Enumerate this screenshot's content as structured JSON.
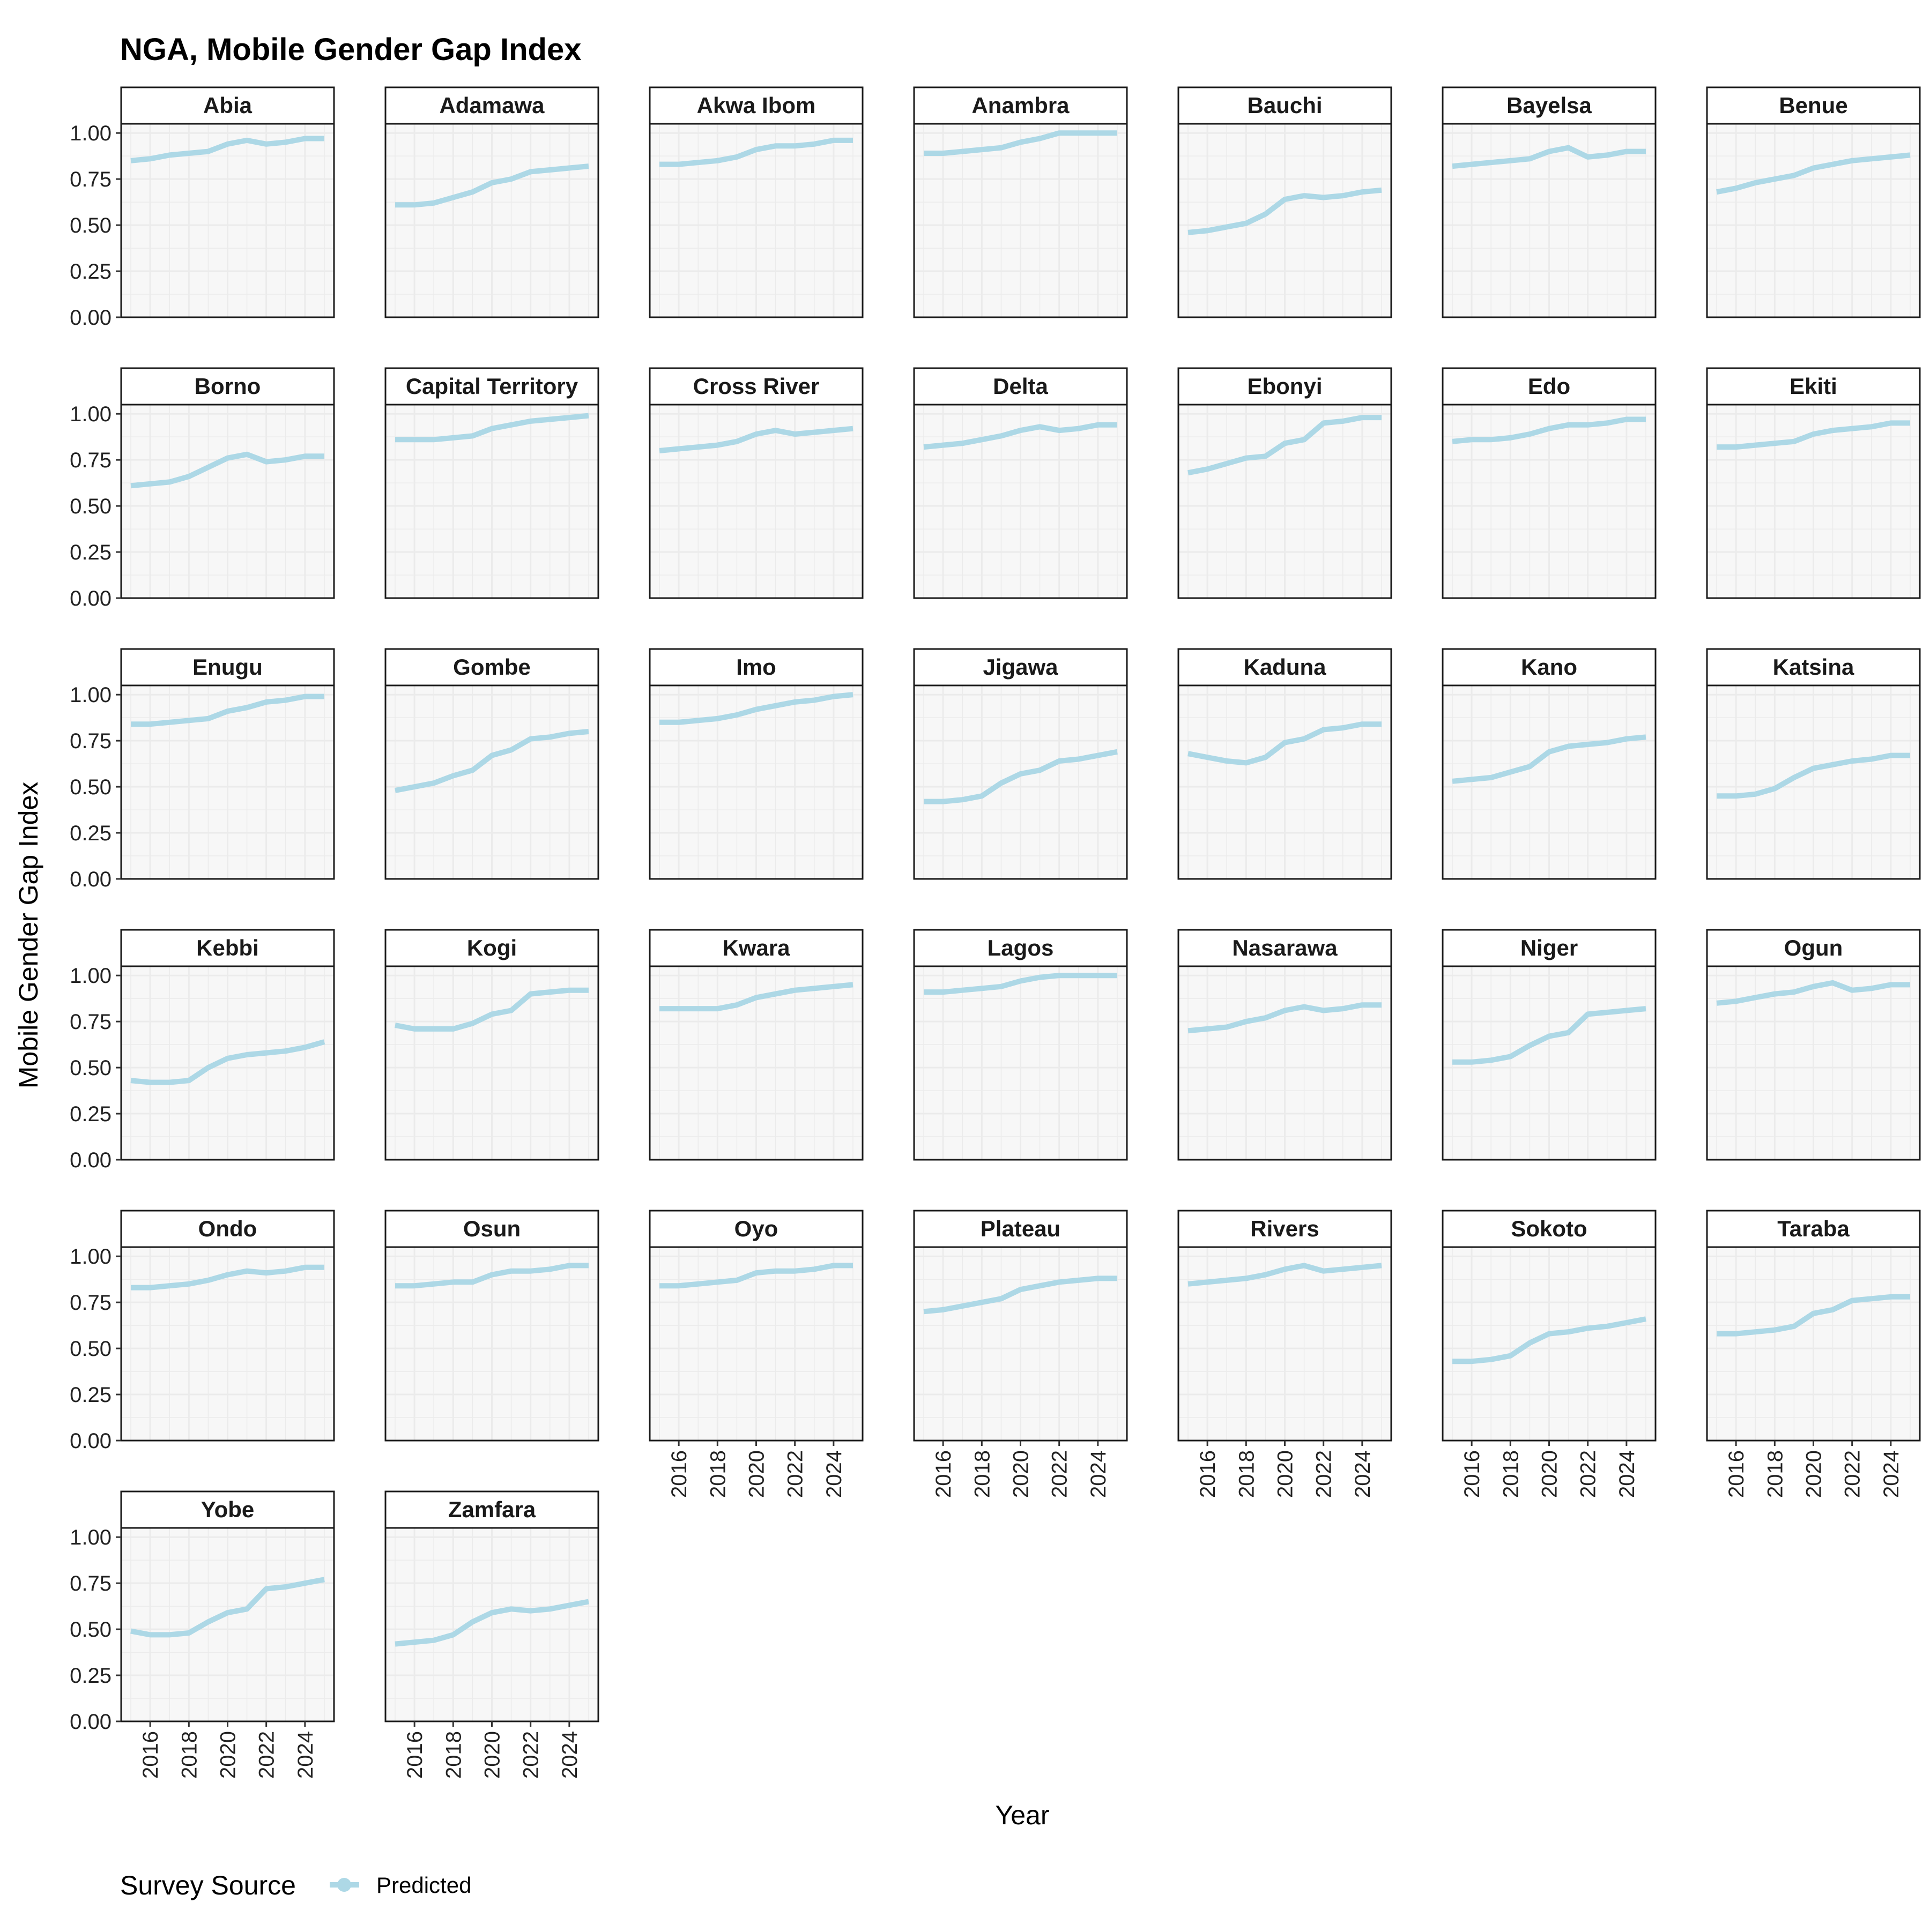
{
  "chart_data": {
    "type": "line",
    "title": "NGA, Mobile Gender Gap Index",
    "xlabel": "Year",
    "ylabel": "Mobile Gender Gap Index",
    "x": [
      2015,
      2016,
      2017,
      2018,
      2019,
      2020,
      2021,
      2022,
      2023,
      2024,
      2025
    ],
    "xlim": [
      2014.5,
      2025.5
    ],
    "ylim": [
      0,
      1.05
    ],
    "x_ticks": [
      "2016",
      "2018",
      "2020",
      "2022",
      "2024"
    ],
    "y_ticks": [
      "0.00",
      "0.25",
      "0.50",
      "0.75",
      "1.00"
    ],
    "grid": true,
    "facet_columns": 7,
    "legend": {
      "title": "Survey Source",
      "position": "bottom-left",
      "entries": [
        {
          "label": "Predicted",
          "color": "#add8e6"
        }
      ]
    },
    "line_color": "#add8e6",
    "panel_background": "#f7f7f7",
    "grid_color": "#ebebeb",
    "panels": [
      {
        "name": "Abia",
        "values": [
          0.85,
          0.86,
          0.88,
          0.89,
          0.9,
          0.94,
          0.96,
          0.94,
          0.95,
          0.97,
          0.97
        ]
      },
      {
        "name": "Adamawa",
        "values": [
          0.61,
          0.61,
          0.62,
          0.65,
          0.68,
          0.73,
          0.75,
          0.79,
          0.8,
          0.81,
          0.82
        ]
      },
      {
        "name": "Akwa Ibom",
        "values": [
          0.83,
          0.83,
          0.84,
          0.85,
          0.87,
          0.91,
          0.93,
          0.93,
          0.94,
          0.96,
          0.96
        ]
      },
      {
        "name": "Anambra",
        "values": [
          0.89,
          0.89,
          0.9,
          0.91,
          0.92,
          0.95,
          0.97,
          1.0,
          1.0,
          1.0,
          1.0
        ]
      },
      {
        "name": "Bauchi",
        "values": [
          0.46,
          0.47,
          0.49,
          0.51,
          0.56,
          0.64,
          0.66,
          0.65,
          0.66,
          0.68,
          0.69
        ]
      },
      {
        "name": "Bayelsa",
        "values": [
          0.82,
          0.83,
          0.84,
          0.85,
          0.86,
          0.9,
          0.92,
          0.87,
          0.88,
          0.9,
          0.9
        ]
      },
      {
        "name": "Benue",
        "values": [
          0.68,
          0.7,
          0.73,
          0.75,
          0.77,
          0.81,
          0.83,
          0.85,
          0.86,
          0.87,
          0.88
        ]
      },
      {
        "name": "Borno",
        "values": [
          0.61,
          0.62,
          0.63,
          0.66,
          0.71,
          0.76,
          0.78,
          0.74,
          0.75,
          0.77,
          0.77
        ]
      },
      {
        "name": "Capital Territory",
        "values": [
          0.86,
          0.86,
          0.86,
          0.87,
          0.88,
          0.92,
          0.94,
          0.96,
          0.97,
          0.98,
          0.99
        ]
      },
      {
        "name": "Cross River",
        "values": [
          0.8,
          0.81,
          0.82,
          0.83,
          0.85,
          0.89,
          0.91,
          0.89,
          0.9,
          0.91,
          0.92
        ]
      },
      {
        "name": "Delta",
        "values": [
          0.82,
          0.83,
          0.84,
          0.86,
          0.88,
          0.91,
          0.93,
          0.91,
          0.92,
          0.94,
          0.94
        ]
      },
      {
        "name": "Ebonyi",
        "values": [
          0.68,
          0.7,
          0.73,
          0.76,
          0.77,
          0.84,
          0.86,
          0.95,
          0.96,
          0.98,
          0.98
        ]
      },
      {
        "name": "Edo",
        "values": [
          0.85,
          0.86,
          0.86,
          0.87,
          0.89,
          0.92,
          0.94,
          0.94,
          0.95,
          0.97,
          0.97
        ]
      },
      {
        "name": "Ekiti",
        "values": [
          0.82,
          0.82,
          0.83,
          0.84,
          0.85,
          0.89,
          0.91,
          0.92,
          0.93,
          0.95,
          0.95
        ]
      },
      {
        "name": "Enugu",
        "values": [
          0.84,
          0.84,
          0.85,
          0.86,
          0.87,
          0.91,
          0.93,
          0.96,
          0.97,
          0.99,
          0.99
        ]
      },
      {
        "name": "Gombe",
        "values": [
          0.48,
          0.5,
          0.52,
          0.56,
          0.59,
          0.67,
          0.7,
          0.76,
          0.77,
          0.79,
          0.8
        ]
      },
      {
        "name": "Imo",
        "values": [
          0.85,
          0.85,
          0.86,
          0.87,
          0.89,
          0.92,
          0.94,
          0.96,
          0.97,
          0.99,
          1.0
        ]
      },
      {
        "name": "Jigawa",
        "values": [
          0.42,
          0.42,
          0.43,
          0.45,
          0.52,
          0.57,
          0.59,
          0.64,
          0.65,
          0.67,
          0.69
        ]
      },
      {
        "name": "Kaduna",
        "values": [
          0.68,
          0.66,
          0.64,
          0.63,
          0.66,
          0.74,
          0.76,
          0.81,
          0.82,
          0.84,
          0.84
        ]
      },
      {
        "name": "Kano",
        "values": [
          0.53,
          0.54,
          0.55,
          0.58,
          0.61,
          0.69,
          0.72,
          0.73,
          0.74,
          0.76,
          0.77
        ]
      },
      {
        "name": "Katsina",
        "values": [
          0.45,
          0.45,
          0.46,
          0.49,
          0.55,
          0.6,
          0.62,
          0.64,
          0.65,
          0.67,
          0.67
        ]
      },
      {
        "name": "Kebbi",
        "values": [
          0.43,
          0.42,
          0.42,
          0.43,
          0.5,
          0.55,
          0.57,
          0.58,
          0.59,
          0.61,
          0.64
        ]
      },
      {
        "name": "Kogi",
        "values": [
          0.73,
          0.71,
          0.71,
          0.71,
          0.74,
          0.79,
          0.81,
          0.9,
          0.91,
          0.92,
          0.92
        ]
      },
      {
        "name": "Kwara",
        "values": [
          0.82,
          0.82,
          0.82,
          0.82,
          0.84,
          0.88,
          0.9,
          0.92,
          0.93,
          0.94,
          0.95
        ]
      },
      {
        "name": "Lagos",
        "values": [
          0.91,
          0.91,
          0.92,
          0.93,
          0.94,
          0.97,
          0.99,
          1.0,
          1.0,
          1.0,
          1.0
        ]
      },
      {
        "name": "Nasarawa",
        "values": [
          0.7,
          0.71,
          0.72,
          0.75,
          0.77,
          0.81,
          0.83,
          0.81,
          0.82,
          0.84,
          0.84
        ]
      },
      {
        "name": "Niger",
        "values": [
          0.53,
          0.53,
          0.54,
          0.56,
          0.62,
          0.67,
          0.69,
          0.79,
          0.8,
          0.81,
          0.82
        ]
      },
      {
        "name": "Ogun",
        "values": [
          0.85,
          0.86,
          0.88,
          0.9,
          0.91,
          0.94,
          0.96,
          0.92,
          0.93,
          0.95,
          0.95
        ]
      },
      {
        "name": "Ondo",
        "values": [
          0.83,
          0.83,
          0.84,
          0.85,
          0.87,
          0.9,
          0.92,
          0.91,
          0.92,
          0.94,
          0.94
        ]
      },
      {
        "name": "Osun",
        "values": [
          0.84,
          0.84,
          0.85,
          0.86,
          0.86,
          0.9,
          0.92,
          0.92,
          0.93,
          0.95,
          0.95
        ]
      },
      {
        "name": "Oyo",
        "values": [
          0.84,
          0.84,
          0.85,
          0.86,
          0.87,
          0.91,
          0.92,
          0.92,
          0.93,
          0.95,
          0.95
        ]
      },
      {
        "name": "Plateau",
        "values": [
          0.7,
          0.71,
          0.73,
          0.75,
          0.77,
          0.82,
          0.84,
          0.86,
          0.87,
          0.88,
          0.88
        ]
      },
      {
        "name": "Rivers",
        "values": [
          0.85,
          0.86,
          0.87,
          0.88,
          0.9,
          0.93,
          0.95,
          0.92,
          0.93,
          0.94,
          0.95
        ]
      },
      {
        "name": "Sokoto",
        "values": [
          0.43,
          0.43,
          0.44,
          0.46,
          0.53,
          0.58,
          0.59,
          0.61,
          0.62,
          0.64,
          0.66
        ]
      },
      {
        "name": "Taraba",
        "values": [
          0.58,
          0.58,
          0.59,
          0.6,
          0.62,
          0.69,
          0.71,
          0.76,
          0.77,
          0.78,
          0.78
        ]
      },
      {
        "name": "Yobe",
        "values": [
          0.49,
          0.47,
          0.47,
          0.48,
          0.54,
          0.59,
          0.61,
          0.72,
          0.73,
          0.75,
          0.77
        ]
      },
      {
        "name": "Zamfara",
        "values": [
          0.42,
          0.43,
          0.44,
          0.47,
          0.54,
          0.59,
          0.61,
          0.6,
          0.61,
          0.63,
          0.65
        ]
      }
    ]
  }
}
